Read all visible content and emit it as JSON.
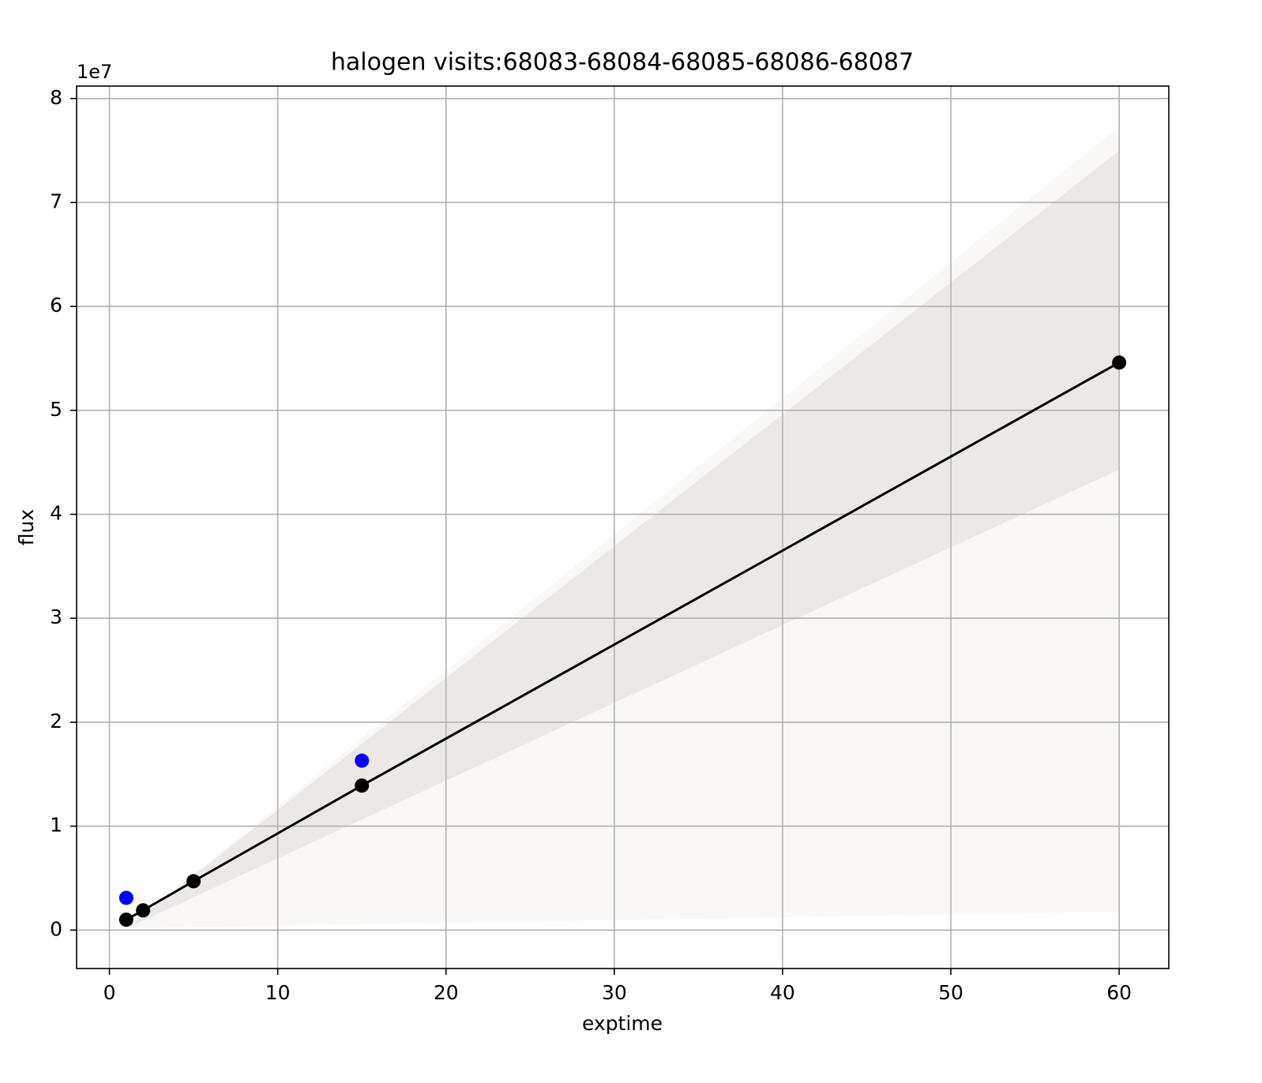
{
  "chart_data": {
    "type": "line",
    "title": "halogen  visits:68083-68084-68085-68086-68087",
    "x_label": "exptime",
    "y_label": "flux",
    "y_offset_label": "1e7",
    "xlim": [
      -1.95,
      62.95
    ],
    "xticks": [
      0,
      10,
      20,
      30,
      40,
      50,
      60
    ],
    "ylim": [
      -3700000,
      81200000
    ],
    "yticks": [
      {
        "value": 0,
        "label": "0"
      },
      {
        "value": 10000000,
        "label": "1"
      },
      {
        "value": 20000000,
        "label": "2"
      },
      {
        "value": 30000000,
        "label": "3"
      },
      {
        "value": 40000000,
        "label": "4"
      },
      {
        "value": 50000000,
        "label": "5"
      },
      {
        "value": 60000000,
        "label": "6"
      },
      {
        "value": 70000000,
        "label": "7"
      },
      {
        "value": 80000000,
        "label": "8"
      }
    ],
    "grid": true,
    "series": [
      {
        "color": "#000000",
        "line": true,
        "x": [
          1,
          2,
          5,
          15,
          60
        ],
        "values": [
          1000000,
          1900000,
          4700000,
          13900000,
          54600000
        ]
      },
      {
        "color": "#0000ff",
        "line": false,
        "x": [
          1,
          15
        ],
        "values": [
          3100000,
          16300000
        ]
      }
    ]
  }
}
